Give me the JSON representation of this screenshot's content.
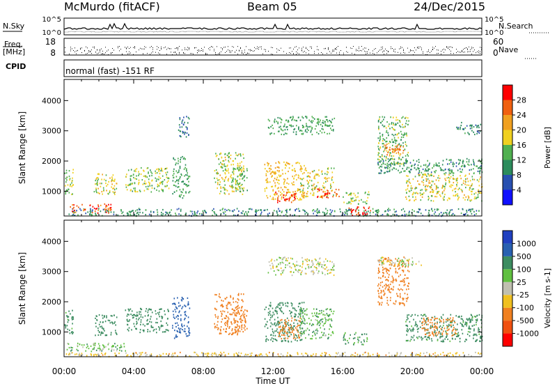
{
  "header": {
    "station": "McMurdo (fitACF)",
    "beam": "Beam 05",
    "date": "24/Dec/2015"
  },
  "strip": {
    "nsky_label": "N.Sky",
    "nsearch_label": "N.Search",
    "freq_label_1": "Freq.",
    "freq_label_2": "[MHz]",
    "nave_label": "Nave",
    "cpid_label": "CPID",
    "cpid_value": "normal (fast) -151 RF",
    "noise_ticks_left": [
      "10^5",
      "10^0"
    ],
    "noise_ticks_right": [
      "10^5",
      "10^0"
    ],
    "freq_ticks": [
      "18",
      "8"
    ],
    "nave_ticks": [
      "60",
      "0"
    ]
  },
  "colors": {
    "power": [
      "#1010ff",
      "#2850b0",
      "#2c8c5c",
      "#50b050",
      "#f0d020",
      "#f0a020",
      "#f06010",
      "#ff0000"
    ],
    "velocity": [
      "#ff0000",
      "#f05010",
      "#f08020",
      "#f0c020",
      "#c0c0b0",
      "#60c040",
      "#3c8c60",
      "#2860b0",
      "#2040c0"
    ]
  },
  "chart_data": [
    {
      "type": "heatmap",
      "name": "power",
      "ylabel": "Slant Range [km]",
      "xlabel": "Time UT",
      "x_ticks": [
        "00:00",
        "04:00",
        "08:00",
        "12:00",
        "16:00",
        "20:00",
        "00:00"
      ],
      "x_range_hours": [
        0,
        24
      ],
      "y_ticks": [
        1000,
        2000,
        3000,
        4000
      ],
      "ylim": [
        180,
        4700
      ],
      "colorbar_label": "Power [dB]",
      "colorbar_ticks": [
        "4",
        "8",
        "12",
        "16",
        "20",
        "24",
        "28"
      ],
      "colorbar_range": [
        0,
        32
      ],
      "regions": [
        {
          "t": [
            0,
            24
          ],
          "r": [
            200,
            450
          ],
          "v": 10
        },
        {
          "t": [
            0.3,
            2.7
          ],
          "r": [
            300,
            600
          ],
          "v": 26
        },
        {
          "t": [
            0,
            0.5
          ],
          "r": [
            900,
            1800
          ],
          "v": 16
        },
        {
          "t": [
            1.7,
            3.0
          ],
          "r": [
            900,
            1600
          ],
          "v": 18
        },
        {
          "t": [
            3.5,
            6.0
          ],
          "r": [
            1000,
            1800
          ],
          "v": 15
        },
        {
          "t": [
            6.2,
            7.2
          ],
          "r": [
            800,
            2200
          ],
          "v": 12
        },
        {
          "t": [
            6.5,
            7.2
          ],
          "r": [
            2800,
            3500
          ],
          "v": 8
        },
        {
          "t": [
            8.6,
            10.3
          ],
          "r": [
            900,
            2300
          ],
          "v": 17
        },
        {
          "t": [
            9.6,
            10.5
          ],
          "r": [
            1000,
            1800
          ],
          "v": 14
        },
        {
          "t": [
            11.5,
            13.8
          ],
          "r": [
            700,
            2000
          ],
          "v": 20
        },
        {
          "t": [
            12.1,
            13.3
          ],
          "r": [
            650,
            1000
          ],
          "v": 28
        },
        {
          "t": [
            13.5,
            15.5
          ],
          "r": [
            800,
            1800
          ],
          "v": 18
        },
        {
          "t": [
            14.5,
            15.8
          ],
          "r": [
            800,
            1100
          ],
          "v": 27
        },
        {
          "t": [
            11.7,
            15.5
          ],
          "r": [
            2900,
            3500
          ],
          "v": 12
        },
        {
          "t": [
            16.3,
            17.6
          ],
          "r": [
            200,
            500
          ],
          "v": 29
        },
        {
          "t": [
            16.0,
            17.5
          ],
          "r": [
            600,
            1000
          ],
          "v": 16
        },
        {
          "t": [
            18.0,
            19.8
          ],
          "r": [
            1900,
            3500
          ],
          "v": 14
        },
        {
          "t": [
            18.3,
            19.5
          ],
          "r": [
            2200,
            2600
          ],
          "v": 24
        },
        {
          "t": [
            19.6,
            24
          ],
          "r": [
            700,
            1600
          ],
          "v": 18
        },
        {
          "t": [
            18.0,
            24
          ],
          "r": [
            1600,
            2100
          ],
          "v": 11
        },
        {
          "t": [
            22.5,
            24
          ],
          "r": [
            2900,
            3300
          ],
          "v": 9
        }
      ]
    },
    {
      "type": "heatmap",
      "name": "velocity",
      "ylabel": "Slant Range [km]",
      "xlabel": "Time UT",
      "x_ticks": [
        "00:00",
        "04:00",
        "08:00",
        "12:00",
        "16:00",
        "20:00",
        "00:00"
      ],
      "x_range_hours": [
        0,
        24
      ],
      "y_ticks": [
        1000,
        2000,
        3000,
        4000
      ],
      "ylim": [
        180,
        4700
      ],
      "colorbar_label": "Velocity [m s-1]",
      "colorbar_ticks": [
        "1000",
        "500",
        "100",
        "25",
        "-25",
        "-100",
        "-500",
        "-1000"
      ],
      "regions": [
        {
          "t": [
            0,
            24
          ],
          "r": [
            200,
            350
          ],
          "v": -50
        },
        {
          "t": [
            0,
            3.5
          ],
          "r": [
            350,
            650
          ],
          "v": 60
        },
        {
          "t": [
            0,
            0.5
          ],
          "r": [
            900,
            1800
          ],
          "v": 150
        },
        {
          "t": [
            1.7,
            3.0
          ],
          "r": [
            900,
            1600
          ],
          "v": 200
        },
        {
          "t": [
            3.5,
            6.0
          ],
          "r": [
            1000,
            1800
          ],
          "v": 250
        },
        {
          "t": [
            6.2,
            7.2
          ],
          "r": [
            800,
            2200
          ],
          "v": 700
        },
        {
          "t": [
            8.6,
            10.3
          ],
          "r": [
            900,
            2300
          ],
          "v": -300
        },
        {
          "t": [
            9.6,
            10.5
          ],
          "r": [
            1000,
            1800
          ],
          "v": -200
        },
        {
          "t": [
            11.5,
            13.8
          ],
          "r": [
            700,
            2000
          ],
          "v": 250
        },
        {
          "t": [
            12.3,
            13.6
          ],
          "r": [
            800,
            1500
          ],
          "v": -250
        },
        {
          "t": [
            13.5,
            15.5
          ],
          "r": [
            800,
            1800
          ],
          "v": 80
        },
        {
          "t": [
            11.7,
            15.5
          ],
          "r": [
            2900,
            3500
          ],
          "v": 0
        },
        {
          "t": [
            18.0,
            19.8
          ],
          "r": [
            1900,
            3500
          ],
          "v": -200
        },
        {
          "t": [
            18.0,
            20.5
          ],
          "r": [
            3200,
            3500
          ],
          "v": 0
        },
        {
          "t": [
            19.6,
            24
          ],
          "r": [
            700,
            1600
          ],
          "v": 150
        },
        {
          "t": [
            20.5,
            22.5
          ],
          "r": [
            900,
            1500
          ],
          "v": -200
        },
        {
          "t": [
            16.0,
            17.5
          ],
          "r": [
            600,
            1000
          ],
          "v": 120
        }
      ]
    }
  ]
}
